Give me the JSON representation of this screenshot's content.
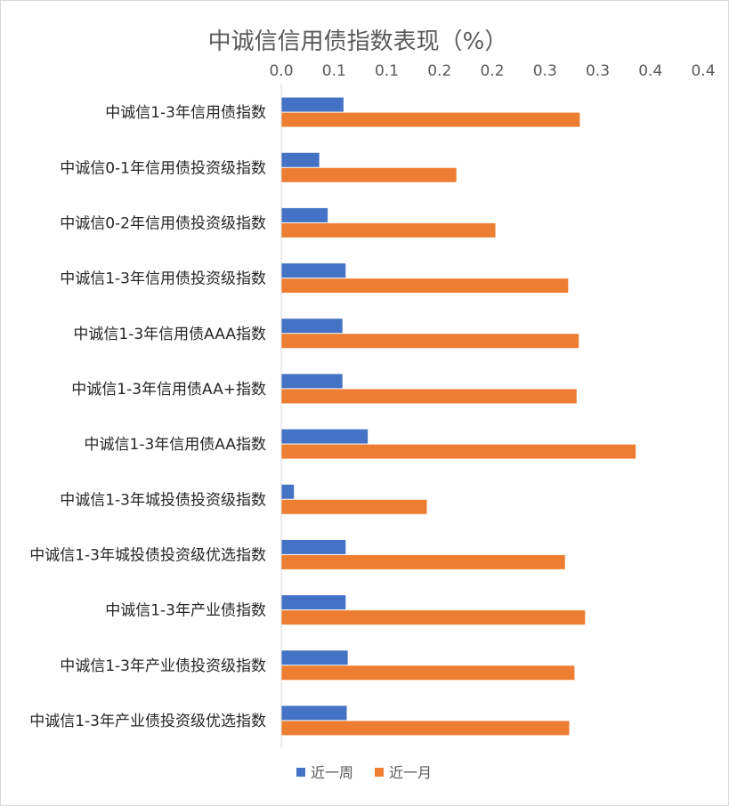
{
  "chart_data": {
    "type": "bar",
    "orientation": "horizontal",
    "title": "中诚信信用债指数表现（%）",
    "xlabel": "",
    "ylabel": "",
    "xlim": [
      0.0,
      0.4
    ],
    "x_tick_labels": [
      "0.0",
      "0.1",
      "0.1",
      "0.2",
      "0.2",
      "0.3",
      "0.3",
      "0.4",
      "0.4"
    ],
    "x_axis_position": "top",
    "grid": false,
    "legend_position": "bottom",
    "categories": [
      "中诚信1-3年信用债指数",
      "中诚信0-1年信用债投资级指数",
      "中诚信0-2年信用债投资级指数",
      "中诚信1-3年信用债投资级指数",
      "中诚信1-3年信用债AAA指数",
      "中诚信1-3年信用债AA+指数",
      "中诚信1-3年信用债AA指数",
      "中诚信1-3年城投债投资级指数",
      "中诚信1-3年城投债投资级优选指数",
      "中诚信1-3年产业债指数",
      "中诚信1-3年产业债投资级指数",
      "中诚信1-3年产业债投资级优选指数"
    ],
    "series": [
      {
        "name": "近一周",
        "color": "#4472c4",
        "values": [
          0.059,
          0.036,
          0.044,
          0.061,
          0.058,
          0.058,
          0.082,
          0.012,
          0.061,
          0.061,
          0.063,
          0.062
        ]
      },
      {
        "name": "近一月",
        "color": "#ed7d31",
        "values": [
          0.283,
          0.166,
          0.203,
          0.272,
          0.282,
          0.28,
          0.336,
          0.138,
          0.269,
          0.288,
          0.278,
          0.273
        ]
      }
    ]
  }
}
